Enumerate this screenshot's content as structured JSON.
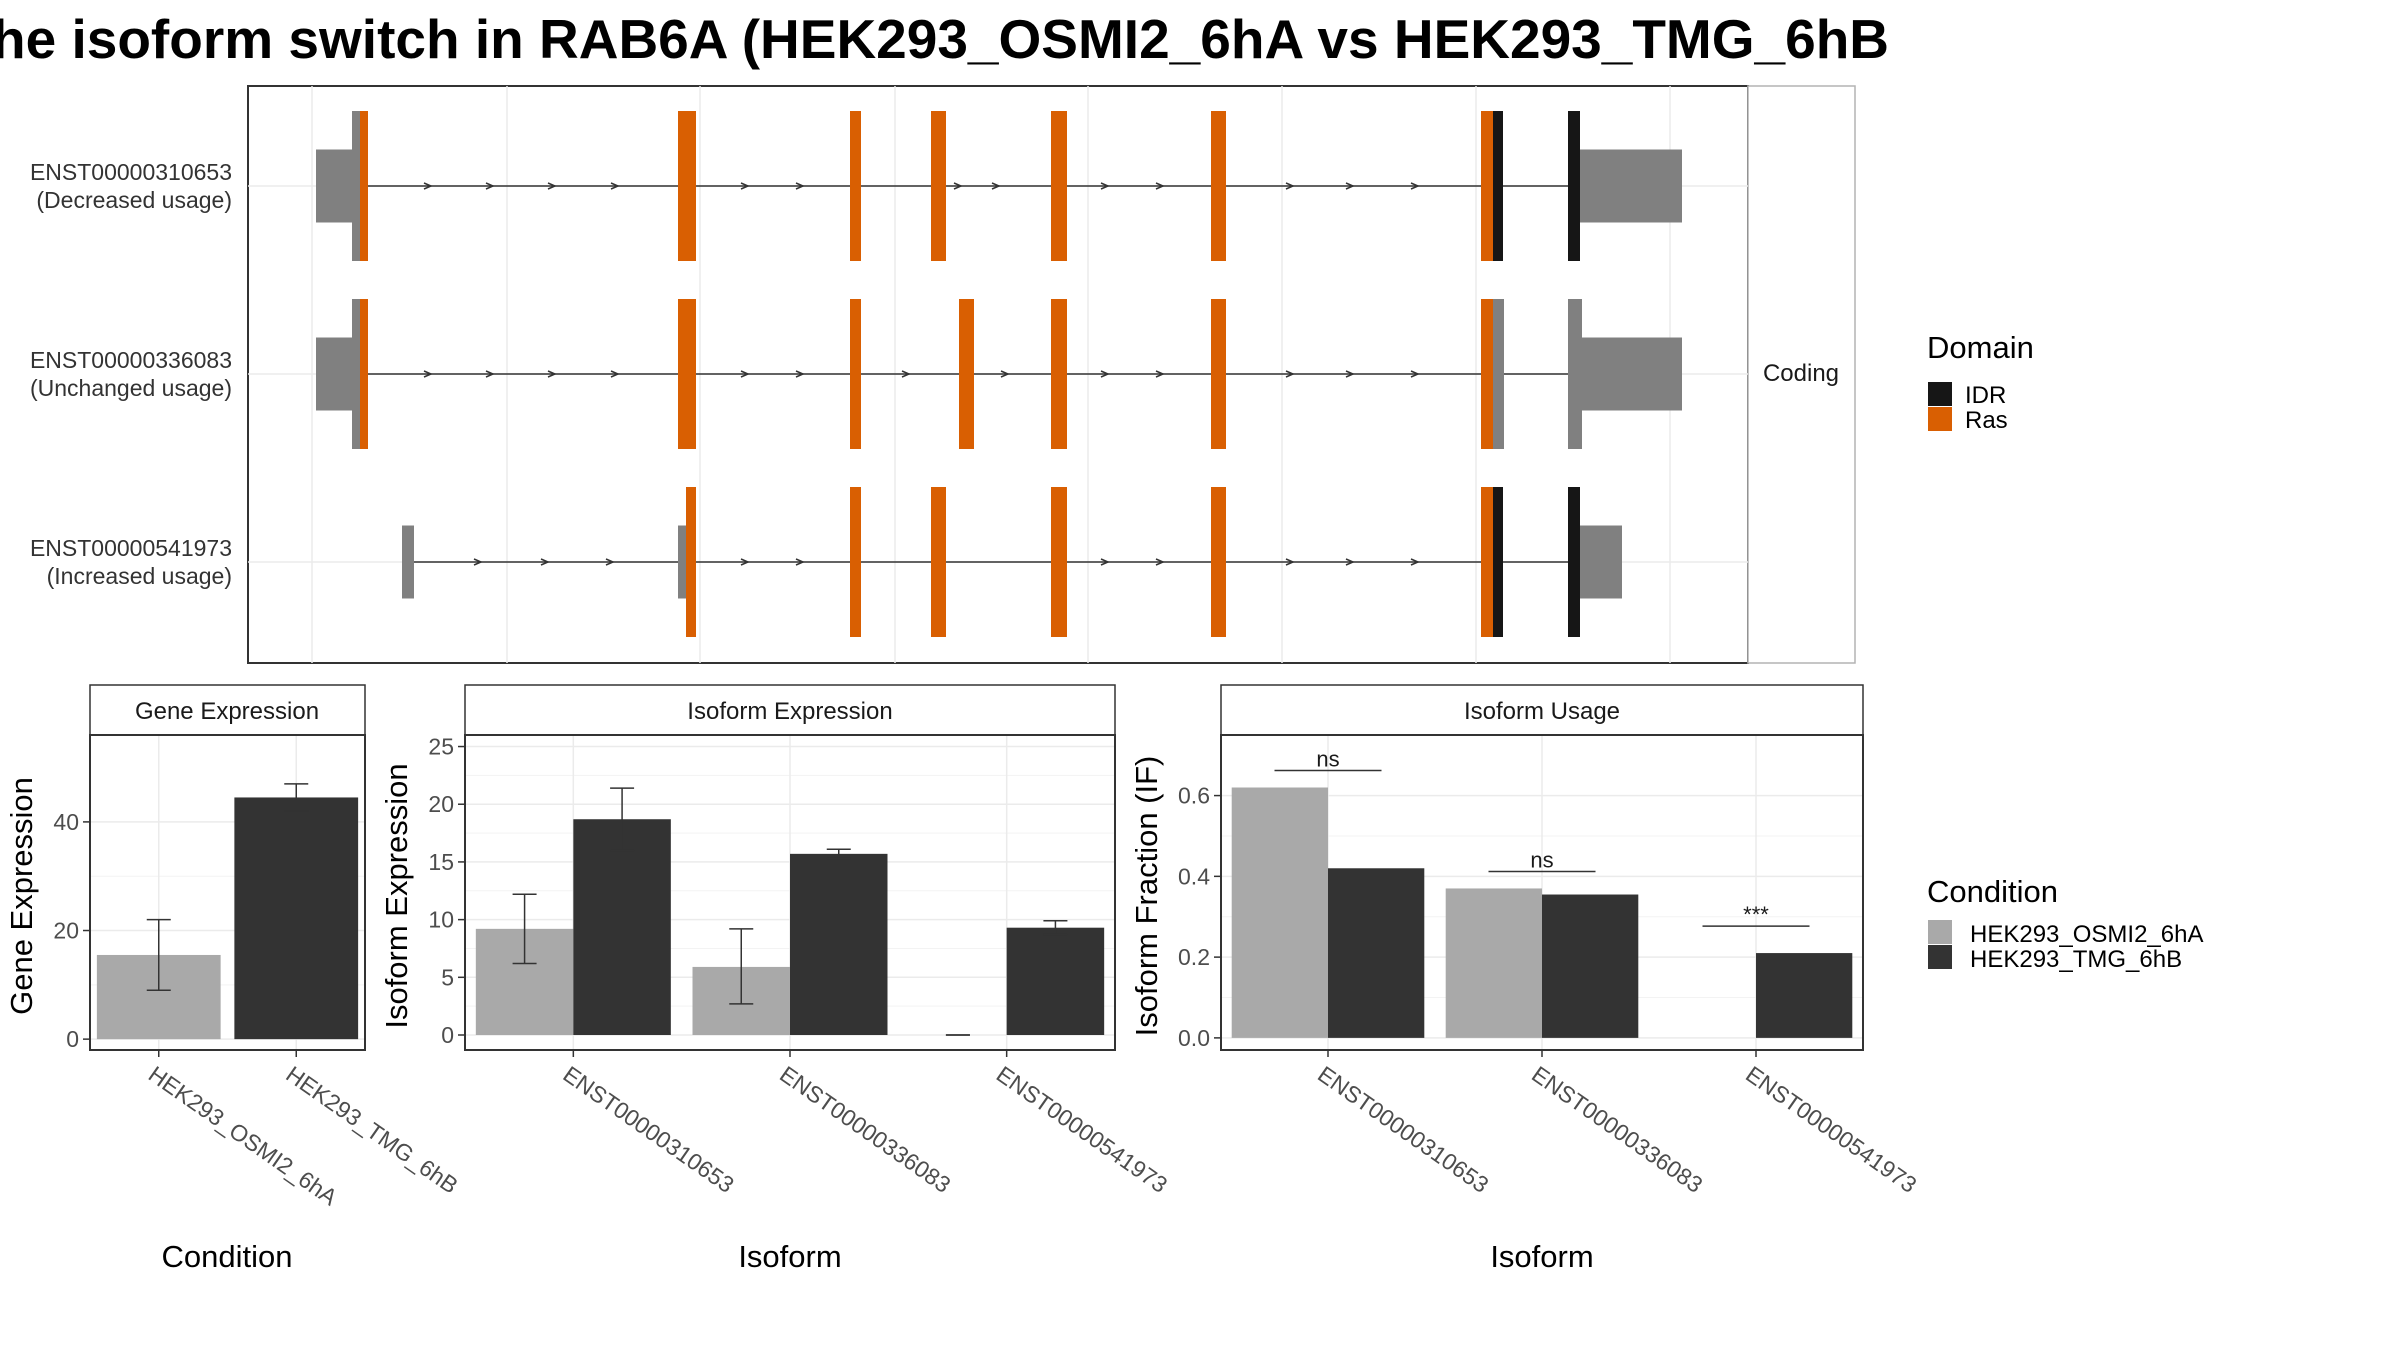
{
  "figure_title": "he isoform switch in RAB6A (HEK293_OSMI2_6hA vs HEK293_TMG_6hB",
  "colors": {
    "ras": "#D95F02",
    "idr": "#161616",
    "exon": "#808080",
    "cond_a": "#A9A9A9",
    "cond_b": "#333333"
  },
  "chart_data": [
    {
      "type": "transcript-structure",
      "facet_label": "Coding",
      "transcripts": [
        {
          "id": "ENST00000310653",
          "usage": "(Decreased usage)"
        },
        {
          "id": "ENST00000336083",
          "usage": "(Unchanged usage)"
        },
        {
          "id": "ENST00000541973",
          "usage": "(Increased usage)"
        }
      ],
      "legend": {
        "title": "Domain",
        "entries": [
          "IDR",
          "Ras"
        ]
      }
    },
    {
      "type": "bar",
      "title": "Gene Expression",
      "xlabel": "Condition",
      "ylabel": "Gene Expression",
      "categories": [
        "HEK293_OSMI2_6hA",
        "HEK293_TMG_6hB"
      ],
      "values": [
        15.5,
        44.5
      ],
      "errors": [
        [
          9,
          22
        ],
        [
          42,
          47
        ]
      ],
      "ylim": [
        -2,
        56
      ],
      "yticks": [
        0,
        20,
        40
      ]
    },
    {
      "type": "bar",
      "title": "Isoform Expression",
      "xlabel": "Isoform",
      "ylabel": "Isoform Expression",
      "categories": [
        "ENST00000310653",
        "ENST00000336083",
        "ENST00000541973"
      ],
      "series": [
        {
          "name": "HEK293_OSMI2_6hA",
          "values": [
            9.2,
            5.9,
            0
          ],
          "errors": [
            [
              6.2,
              12.2
            ],
            [
              2.7,
              9.2
            ],
            [
              0,
              0
            ]
          ]
        },
        {
          "name": "HEK293_TMG_6hB",
          "values": [
            18.7,
            15.7,
            9.3
          ],
          "errors": [
            [
              16,
              21.4
            ],
            [
              15.3,
              16.1
            ],
            [
              8.7,
              9.9
            ]
          ]
        }
      ],
      "ylim": [
        -1.3,
        26
      ],
      "yticks": [
        0,
        5,
        10,
        15,
        20,
        25
      ]
    },
    {
      "type": "bar",
      "title": "Isoform Usage",
      "xlabel": "Isoform",
      "ylabel": "Isoform Fraction (IF)",
      "categories": [
        "ENST00000310653",
        "ENST00000336083",
        "ENST00000541973"
      ],
      "series": [
        {
          "name": "HEK293_OSMI2_6hA",
          "values": [
            0.62,
            0.37,
            0
          ]
        },
        {
          "name": "HEK293_TMG_6hB",
          "values": [
            0.42,
            0.355,
            0.21
          ]
        }
      ],
      "significance": [
        "ns",
        "ns",
        "***"
      ],
      "ylim": [
        -0.03,
        0.75
      ],
      "yticks": [
        "0.0",
        "0.2",
        "0.4",
        "0.6"
      ]
    }
  ],
  "legend_condition": {
    "title": "Condition",
    "entries": [
      "HEK293_OSMI2_6hA",
      "HEK293_TMG_6hB"
    ]
  }
}
